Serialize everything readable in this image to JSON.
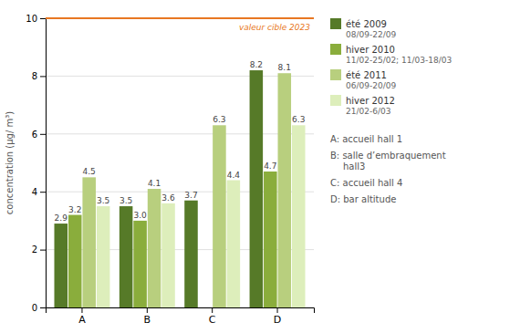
{
  "chart_data": {
    "type": "bar",
    "ylabel": "concentration (µg/ m³)",
    "categories": [
      "A",
      "B",
      "C",
      "D"
    ],
    "series": [
      {
        "name": "été 2009\n08/09-22/09",
        "color": "#567a28",
        "values": [
          2.9,
          3.5,
          3.7,
          8.2
        ]
      },
      {
        "name": "hiver 2010\n11/02-25/02; 11/03-18/03",
        "color": "#8aad3c",
        "values": [
          3.2,
          3.0,
          null,
          4.7
        ],
        "value_labels": [
          "3.2",
          "3.0",
          null,
          "4.7"
        ]
      },
      {
        "name": "été 2011\n06/09-20/09",
        "color": "#b8cf7e",
        "values": [
          4.5,
          4.1,
          6.3,
          8.1
        ]
      },
      {
        "name": "hiver 2012\n21/02-6/03",
        "color": "#ddeebb",
        "values": [
          3.5,
          3.6,
          4.4,
          6.3
        ]
      }
    ],
    "ylim": [
      0,
      10
    ],
    "yticks": [
      0,
      2,
      4,
      6,
      8,
      10
    ],
    "grid": true,
    "data_labels": true,
    "legend": "right",
    "annotations": [
      {
        "text": "valeur cible 2023",
        "y": 10.0,
        "color": "#e87722"
      },
      {
        "text": "A: accueil hall 1"
      },
      {
        "text": "B: salle d’embraquement\n    hall3"
      },
      {
        "text": "C: accueil hall 4"
      },
      {
        "text": "D: bar altitude"
      }
    ]
  }
}
